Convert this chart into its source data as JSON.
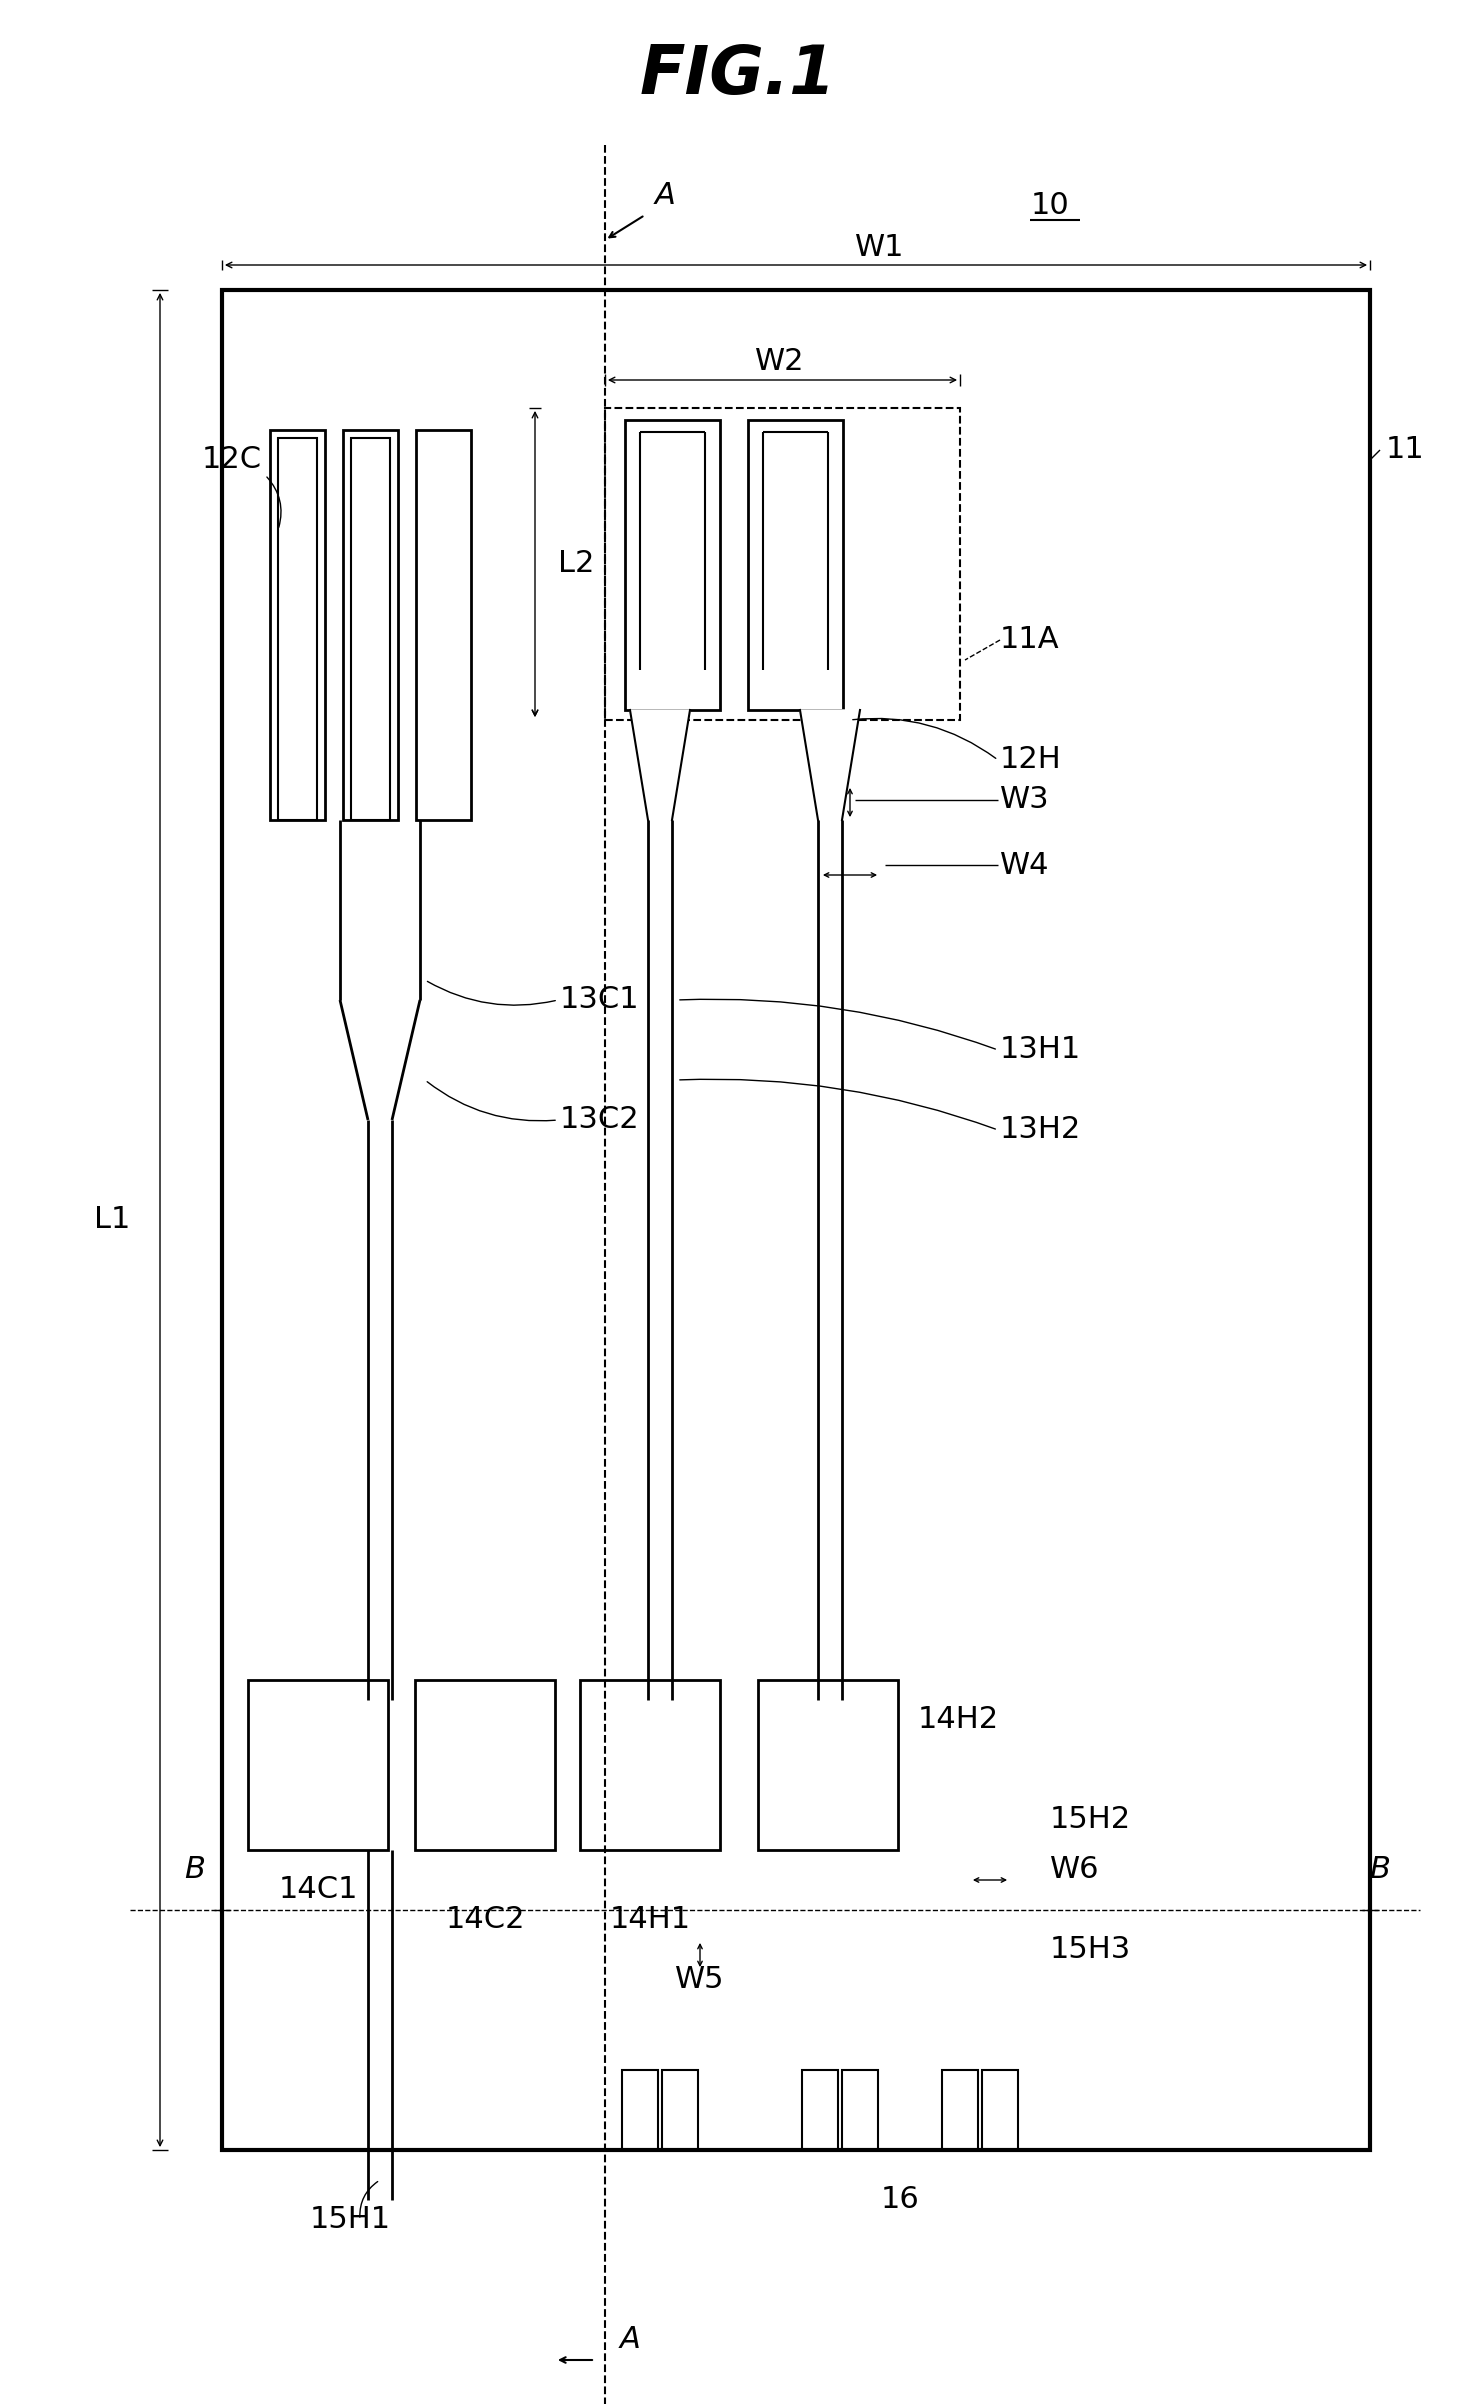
{
  "title": "FIG.1",
  "bg_color": "#ffffff",
  "fig_width": 14.76,
  "fig_height": 24.04,
  "labels": {
    "title": "FIG.1",
    "ref10": "10",
    "ref11": "11",
    "ref11A": "11A",
    "ref12C": "12C",
    "ref12H": "12H",
    "ref13C1": "13C1",
    "ref13C2": "13C2",
    "ref13H1": "13H1",
    "ref13H2": "13H2",
    "ref14C1": "14C1",
    "ref14C2": "14C2",
    "ref14H1": "14H1",
    "ref14H2": "14H2",
    "ref15H1": "15H1",
    "ref15H2": "15H2",
    "ref15H3": "15H3",
    "ref16": "16",
    "W1": "W1",
    "W2": "W2",
    "W3": "W3",
    "W4": "W4",
    "W5": "W5",
    "W6": "W6",
    "L1": "L1",
    "L2": "L2",
    "A": "A",
    "B": "B"
  }
}
